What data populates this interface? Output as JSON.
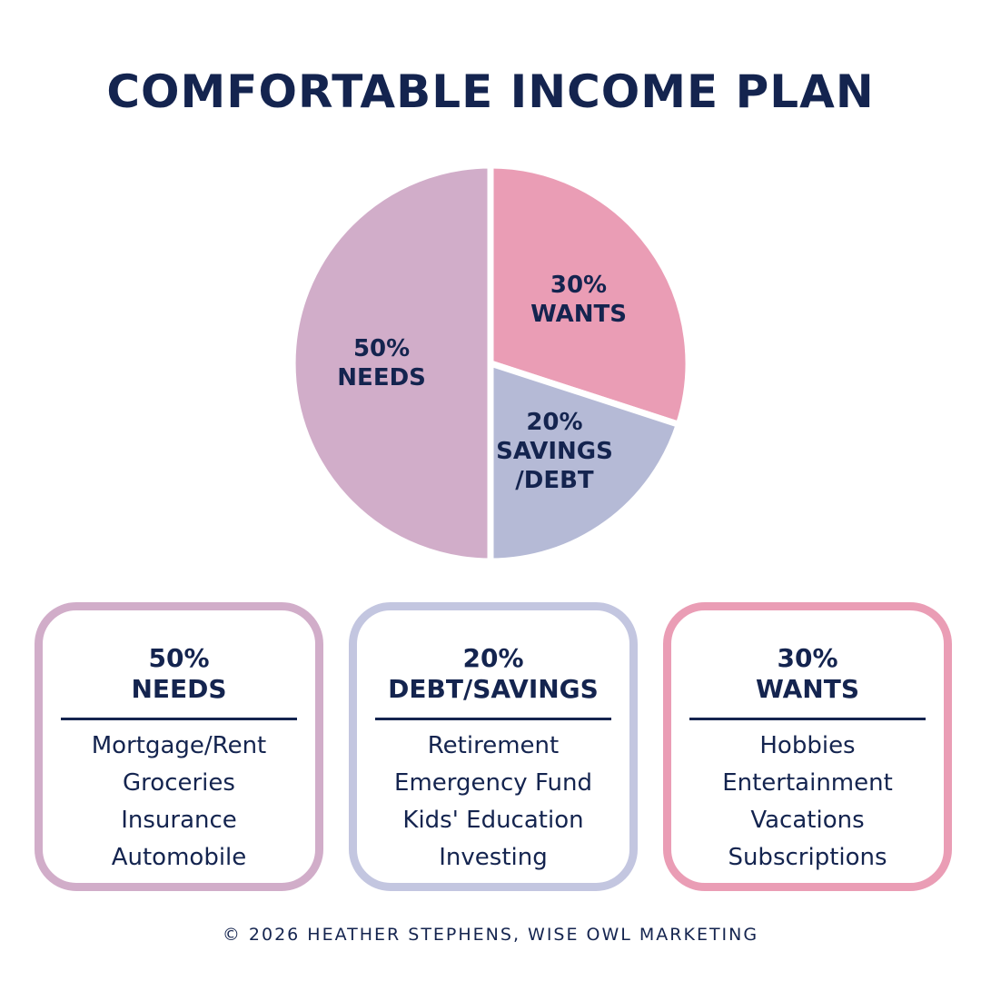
{
  "chart_data": {
    "type": "pie",
    "title": "COMFORTABLE INCOME PLAN",
    "categories": [
      "WANTS",
      "SAVINGS\n/DEBT",
      "NEEDS"
    ],
    "values": [
      30,
      20,
      50
    ],
    "value_labels": [
      "30%",
      "20%",
      "50%"
    ],
    "colors": [
      "#ea9db5",
      "#b5bad6",
      "#d1adc9"
    ]
  },
  "cards": [
    {
      "percent": "50%",
      "title": "NEEDS",
      "color": "#d1adc9",
      "items": [
        "Mortgage/Rent",
        "Groceries",
        "Insurance",
        "Automobile"
      ]
    },
    {
      "percent": "20%",
      "title": "DEBT/SAVINGS",
      "color": "#c3c6e0",
      "items": [
        "Retirement",
        "Emergency Fund",
        "Kids' Education",
        "Investing"
      ]
    },
    {
      "percent": "30%",
      "title": "WANTS",
      "color": "#ea9db5",
      "items": [
        "Hobbies",
        "Entertainment",
        "Vacations",
        "Subscriptions"
      ]
    }
  ],
  "footer": "© 2026 HEATHER STEPHENS, WISE OWL MARKETING"
}
